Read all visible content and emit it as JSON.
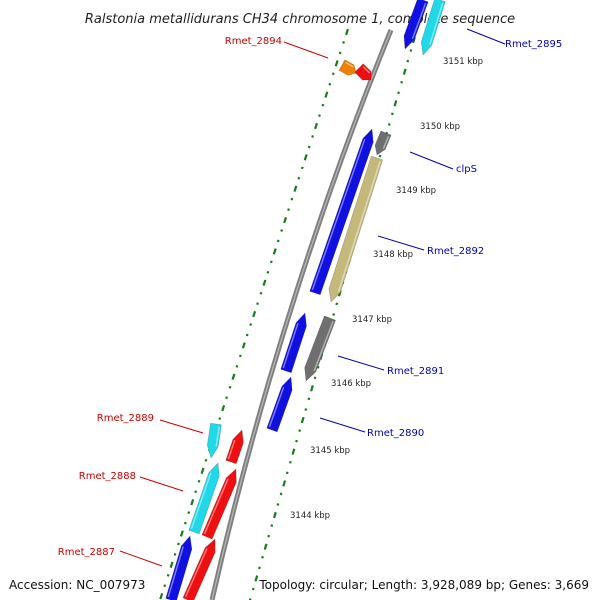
{
  "title": "Ralstonia metallidurans CH34 chromosome 1, complete sequence",
  "footer": {
    "accession": "Accession: NC_007973",
    "topology": "Topology: circular; Length: 3,928,089 bp; Genes: 3,669"
  },
  "colors": {
    "backbone": "#7f7f7f",
    "tick": "#1a7a1a",
    "label_forward": "#0000b4",
    "label_reverse": "#cc0000",
    "blue": "#1010e0",
    "cyan": "#20d8e8",
    "red": "#ee1010",
    "orange": "#f08000",
    "gray": "#6f6f6f",
    "olive": "#c4b87a"
  },
  "kbp_labels": [
    "3151 kbp",
    "3150 kbp",
    "3149 kbp",
    "3148 kbp",
    "3147 kbp",
    "3146 kbp",
    "3145 kbp",
    "3144 kbp"
  ],
  "gene_labels": [
    "Rmet_2895",
    "clpS",
    "Rmet_2892",
    "Rmet_2891",
    "Rmet_2890",
    "Rmet_2894",
    "Rmet_2889",
    "Rmet_2888",
    "Rmet_2887"
  ]
}
